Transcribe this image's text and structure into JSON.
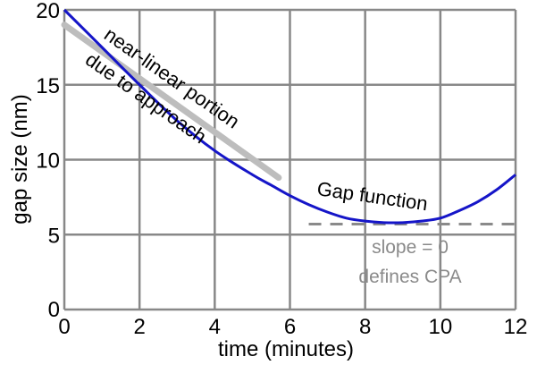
{
  "chart_data": {
    "type": "line",
    "title": "",
    "xlabel": "time (minutes)",
    "ylabel": "gap size (nm)",
    "xlim": [
      0,
      12
    ],
    "ylim": [
      0,
      20
    ],
    "x_ticks": [
      0,
      2,
      4,
      6,
      8,
      10,
      12
    ],
    "y_ticks": [
      0,
      5,
      10,
      15,
      20
    ],
    "grid": true,
    "series": [
      {
        "name": "Gap function",
        "color": "#1515c8",
        "x": [
          0,
          1,
          2,
          3,
          4,
          5,
          5.5,
          6,
          6.5,
          7,
          7.5,
          8,
          8.5,
          9,
          9.5,
          10,
          10.5,
          11,
          11.5,
          12
        ],
        "y": [
          20,
          17.5,
          15.0,
          12.6,
          10.6,
          9.0,
          8.3,
          7.6,
          7.0,
          6.5,
          6.1,
          5.9,
          5.8,
          5.8,
          5.9,
          6.1,
          6.6,
          7.2,
          8.0,
          9.0
        ]
      }
    ],
    "reference_lines": [
      {
        "kind": "approach-line",
        "color": "#bdbdbd",
        "x": [
          0,
          5.7
        ],
        "y": [
          19.0,
          8.8
        ]
      },
      {
        "kind": "cpa-line",
        "color": "#8a8a8a",
        "style": "dashed",
        "x": [
          6.5,
          12
        ],
        "y": [
          5.7,
          5.7
        ]
      }
    ],
    "annotations": {
      "near_linear_line1": "near-linear portion",
      "near_linear_line2": "due to approach",
      "gap_function": "Gap function",
      "slope_line1": "slope = 0",
      "slope_line2": "defines CPA"
    }
  }
}
